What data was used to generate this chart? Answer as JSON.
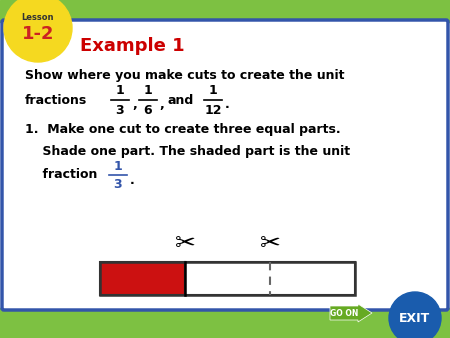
{
  "bg_color": "#ffffff",
  "border_color": "#3355aa",
  "green_color": "#7dc142",
  "yellow_color": "#f5d920",
  "lesson_label": "Lesson",
  "lesson_number": "1-2",
  "example_title": "Example 1",
  "example_color": "#cc0000",
  "line1": "Show where you make cuts to create the unit",
  "line2_prefix": "fractions",
  "frac1_num": "1",
  "frac1_den": "3",
  "frac2_num": "1",
  "frac2_den": "6",
  "frac3_num": "1",
  "frac3_den": "12",
  "step1": "1.  Make one cut to create three equal parts.",
  "step1_sub1": "    Shade one part. The shaded part is the unit",
  "step1_sub2": "    fraction",
  "frac_inline_num": "1",
  "frac_inline_den": "3",
  "frac_inline_color": "#3355aa",
  "shaded_color": "#cc1111",
  "unshaded_color": "#ffffff",
  "rect_border": "#333333",
  "go_on_color": "#66aa22",
  "exit_color": "#1a5cad"
}
